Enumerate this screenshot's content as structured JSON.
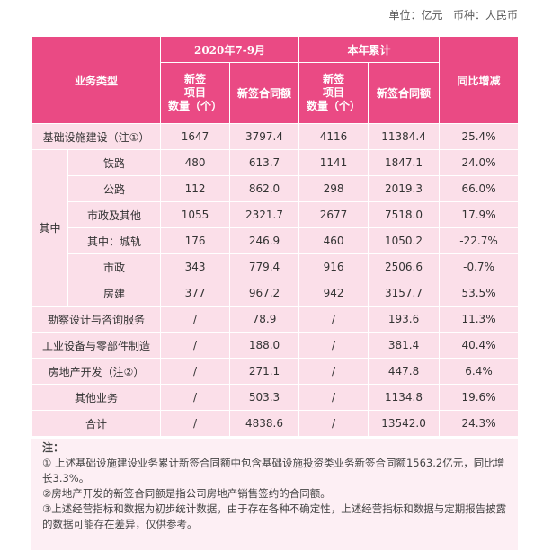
{
  "unit_line": "单位：亿元   币种：人民币",
  "table": {
    "headers": {
      "business_type": "业务类型",
      "period1": "2020年7-9月",
      "period2": "本年累计",
      "yoy": "同比增减",
      "projects_l1": "新签",
      "projects_l2": "项目",
      "projects_l3": "数量（个）",
      "amount": "新签合同额"
    },
    "other_label": "其中",
    "rows": [
      {
        "label": "基础设施建设（注①）",
        "p1_count": "1647",
        "p1_amount": "3797.4",
        "p2_count": "4116",
        "p2_amount": "11384.4",
        "yoy": "25.4%"
      },
      {
        "label": "铁路",
        "p1_count": "480",
        "p1_amount": "613.7",
        "p2_count": "1141",
        "p2_amount": "1847.1",
        "yoy": "24.0%"
      },
      {
        "label": "公路",
        "p1_count": "112",
        "p1_amount": "862.0",
        "p2_count": "298",
        "p2_amount": "2019.3",
        "yoy": "66.0%"
      },
      {
        "label": "市政及其他",
        "p1_count": "1055",
        "p1_amount": "2321.7",
        "p2_count": "2677",
        "p2_amount": "7518.0",
        "yoy": "17.9%"
      },
      {
        "label": "其中：城轨",
        "p1_count": "176",
        "p1_amount": "246.9",
        "p2_count": "460",
        "p2_amount": "1050.2",
        "yoy": "-22.7%"
      },
      {
        "label": "市政",
        "p1_count": "343",
        "p1_amount": "779.4",
        "p2_count": "916",
        "p2_amount": "2506.6",
        "yoy": "-0.7%"
      },
      {
        "label": "房建",
        "p1_count": "377",
        "p1_amount": "967.2",
        "p2_count": "942",
        "p2_amount": "3157.7",
        "yoy": "53.5%"
      },
      {
        "label": "勘察设计与咨询服务",
        "p1_count": "/",
        "p1_amount": "78.9",
        "p2_count": "/",
        "p2_amount": "193.6",
        "yoy": "11.3%"
      },
      {
        "label": "工业设备与零部件制造",
        "p1_count": "/",
        "p1_amount": "188.0",
        "p2_count": "/",
        "p2_amount": "381.4",
        "yoy": "40.4%"
      },
      {
        "label": "房地产开发（注②）",
        "p1_count": "/",
        "p1_amount": "271.1",
        "p2_count": "/",
        "p2_amount": "447.8",
        "yoy": "6.4%"
      },
      {
        "label": "其他业务",
        "p1_count": "/",
        "p1_amount": "503.3",
        "p2_count": "/",
        "p2_amount": "1134.8",
        "yoy": "19.6%"
      },
      {
        "label": "合计",
        "p1_count": "/",
        "p1_amount": "4838.6",
        "p2_count": "/",
        "p2_amount": "13542.0",
        "yoy": "24.3%"
      }
    ]
  },
  "notes": {
    "title": "注：",
    "note1": "①  上述基础设施建设业务累计新签合同额中包含基础设施投资类业务新签合同额1563.2亿元，同比增长3.3%。",
    "note2": "②房地产开发的新签合同额是指公司房地产销售签约的合同额。",
    "note3": "③上述经营指标和数据为初步统计数据，由于存在各种不确定性，上述经营指标和数据与定期报告披露的数据可能存在差异，仅供参考。"
  },
  "colors": {
    "header_bg": "#ea4a84",
    "cell_bg": "#fbdfe9",
    "notes_bg": "#fdeff4"
  }
}
